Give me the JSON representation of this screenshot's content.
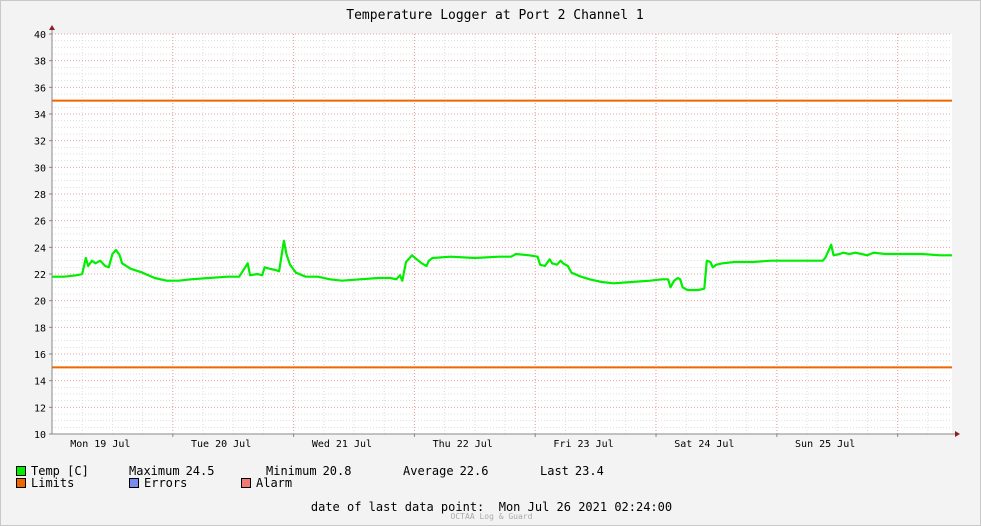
{
  "chart_data": {
    "type": "line",
    "title": "Temperature Logger at Port 2 Channel 1",
    "ylim": [
      10,
      40
    ],
    "yticks": [
      10,
      12,
      14,
      16,
      18,
      20,
      22,
      24,
      26,
      28,
      30,
      32,
      34,
      36,
      38,
      40
    ],
    "xlim_days": [
      0,
      7.45
    ],
    "x_tick_labels": [
      "Mon 19 Jul",
      "Tue 20 Jul",
      "Wed 21 Jul",
      "Thu 22 Jul",
      "Fri 23 Jul",
      "Sat 24 Jul",
      "Sun 25 Jul"
    ],
    "grid": true,
    "limits": [
      35,
      15
    ],
    "series": [
      {
        "name": "Temp [C]",
        "color": "#00ee00",
        "points": [
          [
            0.0,
            21.8
          ],
          [
            0.1,
            21.8
          ],
          [
            0.2,
            21.9
          ],
          [
            0.25,
            22.0
          ],
          [
            0.28,
            23.2
          ],
          [
            0.3,
            22.6
          ],
          [
            0.33,
            23.0
          ],
          [
            0.36,
            22.8
          ],
          [
            0.4,
            23.0
          ],
          [
            0.44,
            22.6
          ],
          [
            0.47,
            22.5
          ],
          [
            0.5,
            23.5
          ],
          [
            0.53,
            23.8
          ],
          [
            0.56,
            23.4
          ],
          [
            0.58,
            22.8
          ],
          [
            0.65,
            22.4
          ],
          [
            0.75,
            22.1
          ],
          [
            0.85,
            21.7
          ],
          [
            0.95,
            21.5
          ],
          [
            1.05,
            21.5
          ],
          [
            1.15,
            21.6
          ],
          [
            1.3,
            21.7
          ],
          [
            1.45,
            21.8
          ],
          [
            1.55,
            21.8
          ],
          [
            1.62,
            22.8
          ],
          [
            1.64,
            21.9
          ],
          [
            1.7,
            22.0
          ],
          [
            1.74,
            21.9
          ],
          [
            1.76,
            22.5
          ],
          [
            1.8,
            22.4
          ],
          [
            1.85,
            22.3
          ],
          [
            1.88,
            22.2
          ],
          [
            1.92,
            24.5
          ],
          [
            1.94,
            23.5
          ],
          [
            1.97,
            22.7
          ],
          [
            2.02,
            22.1
          ],
          [
            2.1,
            21.8
          ],
          [
            2.2,
            21.8
          ],
          [
            2.3,
            21.6
          ],
          [
            2.4,
            21.5
          ],
          [
            2.55,
            21.6
          ],
          [
            2.7,
            21.7
          ],
          [
            2.8,
            21.7
          ],
          [
            2.85,
            21.6
          ],
          [
            2.88,
            21.9
          ],
          [
            2.9,
            21.5
          ],
          [
            2.93,
            22.9
          ],
          [
            2.96,
            23.2
          ],
          [
            2.98,
            23.4
          ],
          [
            3.02,
            23.1
          ],
          [
            3.06,
            22.8
          ],
          [
            3.1,
            22.6
          ],
          [
            3.12,
            23.0
          ],
          [
            3.15,
            23.2
          ],
          [
            3.3,
            23.3
          ],
          [
            3.5,
            23.2
          ],
          [
            3.7,
            23.3
          ],
          [
            3.8,
            23.3
          ],
          [
            3.84,
            23.5
          ],
          [
            3.95,
            23.4
          ],
          [
            4.02,
            23.3
          ],
          [
            4.04,
            22.7
          ],
          [
            4.08,
            22.6
          ],
          [
            4.12,
            23.1
          ],
          [
            4.14,
            22.8
          ],
          [
            4.18,
            22.7
          ],
          [
            4.21,
            23.0
          ],
          [
            4.23,
            22.8
          ],
          [
            4.27,
            22.6
          ],
          [
            4.3,
            22.1
          ],
          [
            4.38,
            21.8
          ],
          [
            4.45,
            21.6
          ],
          [
            4.55,
            21.4
          ],
          [
            4.65,
            21.3
          ],
          [
            4.8,
            21.4
          ],
          [
            4.95,
            21.5
          ],
          [
            5.05,
            21.6
          ],
          [
            5.1,
            21.6
          ],
          [
            5.12,
            21.0
          ],
          [
            5.15,
            21.5
          ],
          [
            5.18,
            21.7
          ],
          [
            5.2,
            21.6
          ],
          [
            5.22,
            21.0
          ],
          [
            5.26,
            20.8
          ],
          [
            5.35,
            20.8
          ],
          [
            5.4,
            20.9
          ],
          [
            5.42,
            23.0
          ],
          [
            5.45,
            22.9
          ],
          [
            5.47,
            22.5
          ],
          [
            5.5,
            22.7
          ],
          [
            5.55,
            22.8
          ],
          [
            5.65,
            22.9
          ],
          [
            5.8,
            22.9
          ],
          [
            5.95,
            23.0
          ],
          [
            6.1,
            23.0
          ],
          [
            6.25,
            23.0
          ],
          [
            6.38,
            23.0
          ],
          [
            6.4,
            23.2
          ],
          [
            6.45,
            24.2
          ],
          [
            6.47,
            23.4
          ],
          [
            6.52,
            23.5
          ],
          [
            6.55,
            23.6
          ],
          [
            6.6,
            23.5
          ],
          [
            6.65,
            23.6
          ],
          [
            6.7,
            23.5
          ],
          [
            6.75,
            23.4
          ],
          [
            6.8,
            23.6
          ],
          [
            6.9,
            23.5
          ],
          [
            7.05,
            23.5
          ],
          [
            7.2,
            23.5
          ],
          [
            7.35,
            23.4
          ],
          [
            7.45,
            23.4
          ]
        ]
      }
    ]
  },
  "legend": {
    "temp_label": "Temp [C]",
    "temp_color": "#00ee00",
    "max_label": "Maximum",
    "max_value": "24.5",
    "min_label": "Minimum",
    "min_value": "20.8",
    "avg_label": "Average",
    "avg_value": "22.6",
    "last_label": "Last",
    "last_value": "23.4",
    "limits_label": "Limits",
    "limits_color": "#ee6600",
    "errors_label": "Errors",
    "errors_color": "#7a8cf0",
    "alarm_label": "Alarm",
    "alarm_color": "#f07878"
  },
  "footer": {
    "last_point_label": "date of last data point:",
    "last_point_value": "Mon Jul 26 2021 02:24:00",
    "watermark": "OCTAA Log & Guard"
  }
}
